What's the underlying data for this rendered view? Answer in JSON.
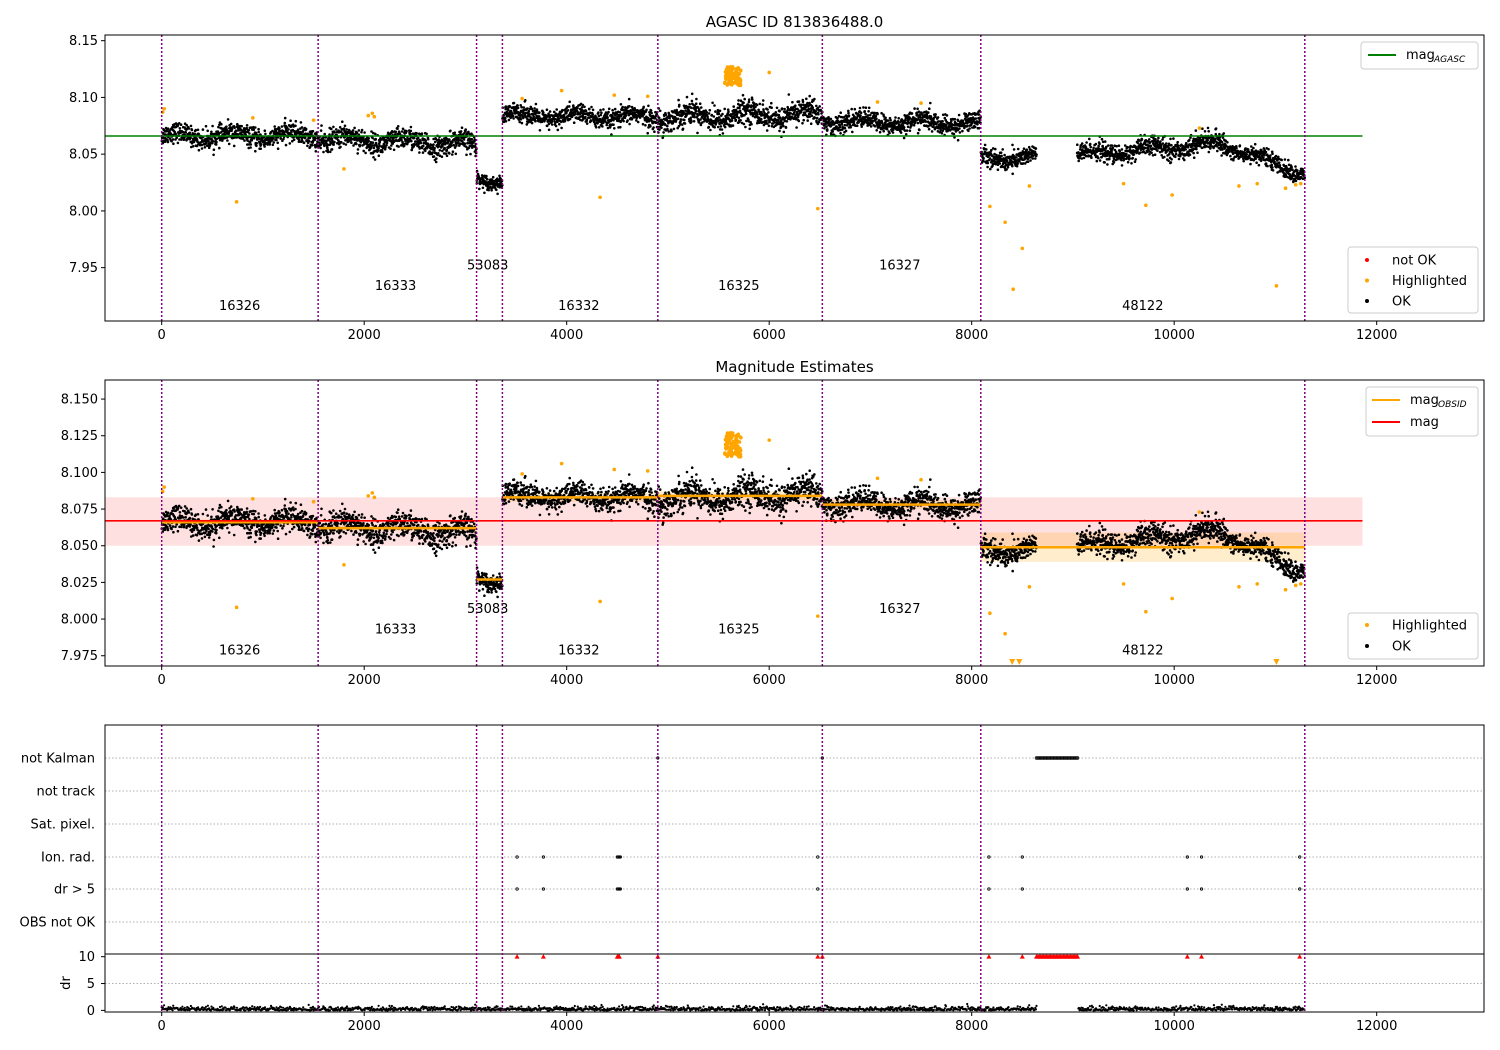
{
  "chart_data": [
    {
      "type": "scatter",
      "title": "AGASC ID 813836488.0",
      "xlim": [
        -560,
        13060
      ],
      "ylim": [
        7.903,
        8.155
      ],
      "xticks": [
        0,
        2000,
        4000,
        6000,
        8000,
        10000,
        12000
      ],
      "xtick_labels": [
        "0",
        "2000",
        "4000",
        "6000",
        "8000",
        "10000",
        "12000"
      ],
      "yticks": [
        7.95,
        8.0,
        8.05,
        8.1,
        8.15
      ],
      "ytick_labels": [
        "7.95",
        "8.00",
        "8.05",
        "8.10",
        "8.15"
      ],
      "obs_boundaries": [
        0,
        1545,
        3110,
        3365,
        4900,
        6525,
        8090,
        11290
      ],
      "obs_labels": [
        {
          "label": "16326",
          "x": 770,
          "y": 7.9125
        },
        {
          "label": "16333",
          "x": 2310,
          "y": 7.9305
        },
        {
          "label": "53083",
          "x": 3220,
          "y": 7.9485
        },
        {
          "label": "16332",
          "x": 4120,
          "y": 7.9125
        },
        {
          "label": "16325",
          "x": 5700,
          "y": 7.9305
        },
        {
          "label": "16327",
          "x": 7290,
          "y": 7.9485
        },
        {
          "label": "48122",
          "x": 9690,
          "y": 7.9125
        }
      ],
      "segments": [
        {
          "x0": 0,
          "x1": 1545,
          "y0": 8.066,
          "y1": 8.066,
          "spread": 0.007
        },
        {
          "x0": 1545,
          "x1": 3110,
          "y0": 8.064,
          "y1": 8.058,
          "spread": 0.008
        },
        {
          "x0": 3110,
          "x1": 3365,
          "y0": 8.029,
          "y1": 8.025,
          "spread": 0.005
        },
        {
          "x0": 3365,
          "x1": 4900,
          "y0": 8.084,
          "y1": 8.082,
          "spread": 0.007
        },
        {
          "x0": 4900,
          "x1": 6525,
          "y0": 8.083,
          "y1": 8.085,
          "spread": 0.009
        },
        {
          "x0": 6525,
          "x1": 8090,
          "y0": 8.079,
          "y1": 8.077,
          "spread": 0.007
        },
        {
          "x0": 8090,
          "x1": 8640,
          "y0": 8.047,
          "y1": 8.047,
          "spread": 0.007
        },
        {
          "x0": 9040,
          "x1": 10500,
          "y0": 8.049,
          "y1": 8.06,
          "spread": 0.007
        },
        {
          "x0": 10500,
          "x1": 11290,
          "y0": 8.058,
          "y1": 8.032,
          "spread": 0.006
        }
      ],
      "highlighted_points": [
        [
          10,
          8.087
        ],
        [
          25,
          8.09
        ],
        [
          740,
          8.008
        ],
        [
          900,
          8.082
        ],
        [
          1500,
          8.08
        ],
        [
          1800,
          8.037
        ],
        [
          2040,
          8.084
        ],
        [
          2080,
          8.086
        ],
        [
          2100,
          8.083
        ],
        [
          4330,
          8.012
        ],
        [
          3560,
          8.099
        ],
        [
          3950,
          8.106
        ],
        [
          4470,
          8.102
        ],
        [
          4800,
          8.101
        ],
        [
          5600,
          8.125
        ],
        [
          5640,
          8.118
        ],
        [
          5660,
          8.12
        ],
        [
          5620,
          8.112
        ],
        [
          5680,
          8.122
        ],
        [
          6000,
          8.122
        ],
        [
          6480,
          8.002
        ],
        [
          7070,
          8.096
        ],
        [
          7500,
          8.095
        ],
        [
          8180,
          8.004
        ],
        [
          8330,
          7.99
        ],
        [
          8410,
          7.931
        ],
        [
          8500,
          7.967
        ],
        [
          8570,
          8.022
        ],
        [
          9500,
          8.024
        ],
        [
          9720,
          8.005
        ],
        [
          9980,
          8.014
        ],
        [
          10250,
          8.073
        ],
        [
          10640,
          8.022
        ],
        [
          10820,
          8.024
        ],
        [
          11010,
          7.934
        ],
        [
          11100,
          8.02
        ],
        [
          11200,
          8.023
        ],
        [
          11250,
          8.024
        ]
      ],
      "highlight_cluster": {
        "x": [
          5560,
          5720
        ],
        "y": [
          8.11,
          8.127
        ]
      },
      "reference_lines": [
        {
          "name": "mag_AGASC",
          "y": 8.066,
          "x": [
            -560,
            11860
          ],
          "color": "#008000"
        }
      ],
      "legend_top": [
        {
          "label": "mag",
          "sub": "AGASC",
          "color": "#008000"
        }
      ],
      "legend_bottom": [
        {
          "label": "not OK",
          "color": "#ff0000"
        },
        {
          "label": "Highlighted",
          "color": "#ffa500"
        },
        {
          "label": "OK",
          "color": "#000000"
        }
      ]
    },
    {
      "type": "scatter",
      "title": "Magnitude Estimates",
      "xlim": [
        -560,
        13060
      ],
      "ylim": [
        7.968,
        8.163
      ],
      "xticks": [
        0,
        2000,
        4000,
        6000,
        8000,
        10000,
        12000
      ],
      "xtick_labels": [
        "0",
        "2000",
        "4000",
        "6000",
        "8000",
        "10000",
        "12000"
      ],
      "yticks": [
        7.975,
        8.0,
        8.025,
        8.05,
        8.075,
        8.1,
        8.125,
        8.15
      ],
      "ytick_labels": [
        "7.975",
        "8.000",
        "8.025",
        "8.050",
        "8.075",
        "8.100",
        "8.125",
        "8.150"
      ],
      "obs_boundaries": [
        0,
        1545,
        3110,
        3365,
        4900,
        6525,
        8090,
        11290
      ],
      "obs_labels": [
        {
          "label": "16326",
          "x": 770,
          "y": 7.976
        },
        {
          "label": "16333",
          "x": 2310,
          "y": 7.99
        },
        {
          "label": "53083",
          "x": 3220,
          "y": 8.004
        },
        {
          "label": "16332",
          "x": 4120,
          "y": 7.976
        },
        {
          "label": "16325",
          "x": 5700,
          "y": 7.99
        },
        {
          "label": "16327",
          "x": 7290,
          "y": 8.004
        },
        {
          "label": "48122",
          "x": 9690,
          "y": 7.976
        }
      ],
      "mag_line": {
        "y": 8.067,
        "band": [
          8.05,
          8.083
        ],
        "x": [
          -560,
          11860
        ],
        "color": "#ff0000"
      },
      "obs_mag": [
        {
          "x0": 0,
          "x1": 1545,
          "y": 8.066,
          "err": 0.002
        },
        {
          "x0": 1545,
          "x1": 3110,
          "y": 8.062,
          "err": 0.002
        },
        {
          "x0": 3110,
          "x1": 3365,
          "y": 8.027,
          "err": 0.002
        },
        {
          "x0": 3365,
          "x1": 4900,
          "y": 8.083,
          "err": 0.003
        },
        {
          "x0": 4900,
          "x1": 6525,
          "y": 8.084,
          "err": 0.003
        },
        {
          "x0": 6525,
          "x1": 8090,
          "y": 8.078,
          "err": 0.003
        },
        {
          "x0": 8090,
          "x1": 11290,
          "y": 8.049,
          "err": 0.01
        }
      ],
      "below_axis_markers": [
        8400,
        8470,
        11010
      ],
      "legend_top": [
        {
          "label": "mag",
          "sub": "OBSID",
          "color": "#ffa500"
        },
        {
          "label": "mag",
          "sub": "",
          "color": "#ff0000"
        }
      ],
      "legend_bottom": [
        {
          "label": "Highlighted",
          "color": "#ffa500"
        },
        {
          "label": "OK",
          "color": "#000000"
        }
      ]
    },
    {
      "type": "scatter",
      "title": "",
      "xlim": [
        -560,
        13060
      ],
      "xticks": [
        0,
        2000,
        4000,
        6000,
        8000,
        10000,
        12000
      ],
      "xtick_labels": [
        "0",
        "2000",
        "4000",
        "6000",
        "8000",
        "10000",
        "12000"
      ],
      "flag_rows": [
        "not Kalman",
        "not track",
        "Sat. pixel.",
        "Ion. rad.",
        "dr > 5",
        "OBS not OK"
      ],
      "flag_events": {
        "not Kalman": {
          "points": [
            4900,
            6525
          ],
          "range": [
            8640,
            9050
          ]
        },
        "Ion. rad.": {
          "points": [
            3510,
            3770,
            4500,
            4510,
            4520,
            4530,
            6480,
            8170,
            8500,
            10130,
            10270,
            11240
          ]
        },
        "dr > 5": {
          "points": [
            3510,
            3770,
            4500,
            4510,
            4520,
            4530,
            6480,
            8170,
            8500,
            10130,
            10270,
            11240
          ]
        }
      },
      "dr_ylabel": "dr",
      "dr_yticks": [
        0,
        5,
        10
      ],
      "dr_ytick_labels": [
        "0",
        "5",
        "10"
      ],
      "dr_ylim": [
        -0.3,
        10.5
      ],
      "dr_clipped_markers": [
        3510,
        3770,
        4500,
        4510,
        4520,
        4900,
        6480,
        6525,
        8170,
        8500,
        10130,
        10270,
        11240
      ],
      "dr_clipped_range": [
        8640,
        9050
      ],
      "dr_gap": [
        8640,
        9050
      ],
      "dr_extent": [
        0,
        11290
      ]
    }
  ]
}
